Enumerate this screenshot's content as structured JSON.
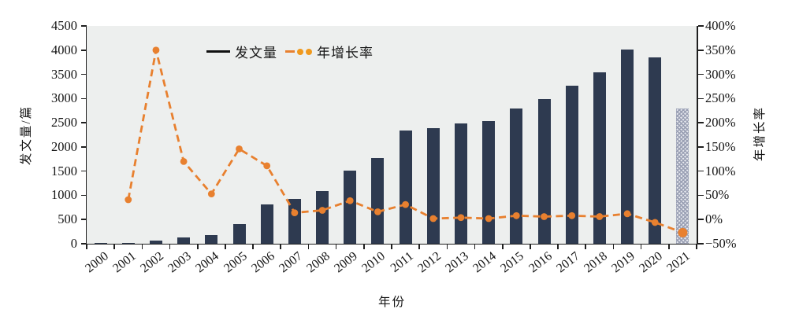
{
  "chart_data": {
    "type": "bar+line",
    "title": "",
    "categories": [
      "2000",
      "2001",
      "2002",
      "2003",
      "2004",
      "2005",
      "2006",
      "2007",
      "2008",
      "2009",
      "2010",
      "2011",
      "2012",
      "2013",
      "2014",
      "2015",
      "2016",
      "2017",
      "2018",
      "2019",
      "2020",
      "2021"
    ],
    "series": [
      {
        "name": "发文量",
        "type": "bar",
        "axis": "left",
        "values": [
          9,
          13,
          57,
          125,
          180,
          410,
          820,
          920,
          1090,
          1515,
          1775,
          2335,
          2380,
          2480,
          2530,
          2790,
          2985,
          3270,
          3540,
          4010,
          3845,
          2790
        ],
        "last_bar_style": "gray-hatched-forecast"
      },
      {
        "name": "年增长率",
        "type": "line",
        "axis": "right",
        "line_style": "dashed",
        "marker": "circle",
        "values_percent": [
          null,
          41,
          350,
          120,
          53,
          146,
          111,
          14,
          19,
          39,
          16,
          31,
          2,
          4,
          2,
          8,
          6,
          8,
          6,
          12,
          -6,
          -27
        ]
      }
    ],
    "left_axis": {
      "label": "发文量/篇",
      "min": 0,
      "max": 4500,
      "tick_labels": [
        "0",
        "500",
        "1000",
        "1500",
        "2000",
        "2500",
        "3000",
        "3500",
        "4000",
        "4500"
      ]
    },
    "right_axis": {
      "label": "年增长率",
      "min": -50,
      "max": 400,
      "tick_labels": [
        "−50%",
        "0%",
        "50%",
        "100%",
        "150%",
        "200%",
        "250%",
        "300%",
        "350%",
        "400%"
      ]
    },
    "x_axis": {
      "label": "年份"
    },
    "legend": {
      "items": [
        {
          "label": "发文量",
          "swatch": "black-solid-line"
        },
        {
          "label": "年增长率",
          "swatch": "orange-dash-two-dots"
        }
      ]
    },
    "layout": {
      "grid": false,
      "legend_position": "top-inside",
      "plot_bg": "#edefee"
    },
    "colors": {
      "bar": "#2e3a50",
      "bar_forecast_hatch": "#9aa0b4",
      "line": "#e8802f",
      "marker": "#e8802f",
      "legend_dot": "#f0991d",
      "axis": "#1f1f1f"
    }
  }
}
